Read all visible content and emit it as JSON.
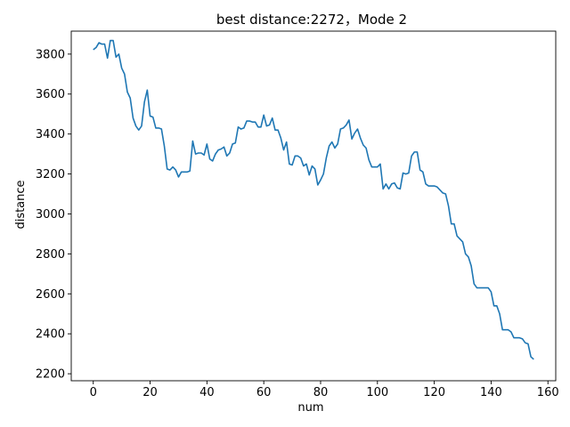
{
  "chart_data": {
    "type": "line",
    "title": "best distance:2272，Mode 2",
    "xlabel": "num",
    "ylabel": "distance",
    "xlim": [
      -7.75,
      162.75
    ],
    "ylim": [
      2165,
      3915
    ],
    "xticks": [
      0,
      20,
      40,
      60,
      80,
      100,
      120,
      140,
      160
    ],
    "yticks": [
      2200,
      2400,
      2600,
      2800,
      3000,
      3200,
      3400,
      3600,
      3800
    ],
    "grid": false,
    "line_color": "#1f77b4",
    "series": [
      {
        "x": [
          0,
          1,
          2,
          3,
          4,
          5,
          6,
          7,
          8,
          9,
          10,
          11,
          12,
          13,
          14,
          15,
          16,
          17,
          18,
          19,
          20,
          21,
          22,
          23,
          24,
          25,
          26,
          27,
          28,
          29,
          30,
          31,
          32,
          33,
          34,
          35,
          36,
          37,
          38,
          39,
          40,
          41,
          42,
          43,
          44,
          45,
          46,
          47,
          48,
          49,
          50,
          51,
          52,
          53,
          54,
          55,
          56,
          57,
          58,
          59,
          60,
          61,
          62,
          63,
          64,
          65,
          66,
          67,
          68,
          69,
          70,
          71,
          72,
          73,
          74,
          75,
          76,
          77,
          78,
          79,
          80,
          81,
          82,
          83,
          84,
          85,
          86,
          87,
          88,
          89,
          90,
          91,
          92,
          93,
          94,
          95,
          96,
          97,
          98,
          99,
          100,
          101,
          102,
          103,
          104,
          105,
          106,
          107,
          108,
          109,
          110,
          111,
          112,
          113,
          114,
          115,
          116,
          117,
          118,
          119,
          120,
          121,
          122,
          123,
          124,
          125,
          126,
          127,
          128,
          129,
          130,
          131,
          132,
          133,
          134,
          135,
          136,
          137,
          138,
          139,
          140,
          141,
          142,
          143,
          144,
          145,
          146,
          147,
          148,
          149,
          150,
          151,
          152,
          153,
          154,
          155
        ],
        "values": [
          3822,
          3833,
          3857,
          3850,
          3850,
          3780,
          3868,
          3868,
          3785,
          3800,
          3730,
          3700,
          3610,
          3580,
          3480,
          3440,
          3420,
          3440,
          3560,
          3620,
          3490,
          3485,
          3430,
          3430,
          3425,
          3340,
          3225,
          3220,
          3235,
          3220,
          3185,
          3210,
          3210,
          3210,
          3215,
          3365,
          3300,
          3305,
          3305,
          3295,
          3350,
          3275,
          3265,
          3300,
          3320,
          3325,
          3335,
          3290,
          3305,
          3350,
          3355,
          3435,
          3425,
          3430,
          3465,
          3465,
          3460,
          3460,
          3435,
          3435,
          3495,
          3440,
          3445,
          3480,
          3420,
          3420,
          3380,
          3320,
          3360,
          3250,
          3245,
          3290,
          3290,
          3280,
          3240,
          3250,
          3195,
          3240,
          3225,
          3145,
          3170,
          3200,
          3280,
          3340,
          3360,
          3330,
          3350,
          3425,
          3430,
          3445,
          3470,
          3375,
          3405,
          3425,
          3380,
          3345,
          3330,
          3270,
          3235,
          3235,
          3235,
          3250,
          3125,
          3150,
          3125,
          3150,
          3155,
          3130,
          3125,
          3205,
          3200,
          3205,
          3290,
          3310,
          3310,
          3220,
          3210,
          3150,
          3140,
          3140,
          3140,
          3135,
          3120,
          3105,
          3100,
          3040,
          2950,
          2950,
          2890,
          2875,
          2860,
          2800,
          2785,
          2740,
          2650,
          2630,
          2630,
          2630,
          2630,
          2630,
          2610,
          2540,
          2540,
          2500,
          2420,
          2420,
          2420,
          2410,
          2380,
          2380,
          2380,
          2375,
          2355,
          2350,
          2285,
          2272
        ]
      }
    ]
  }
}
